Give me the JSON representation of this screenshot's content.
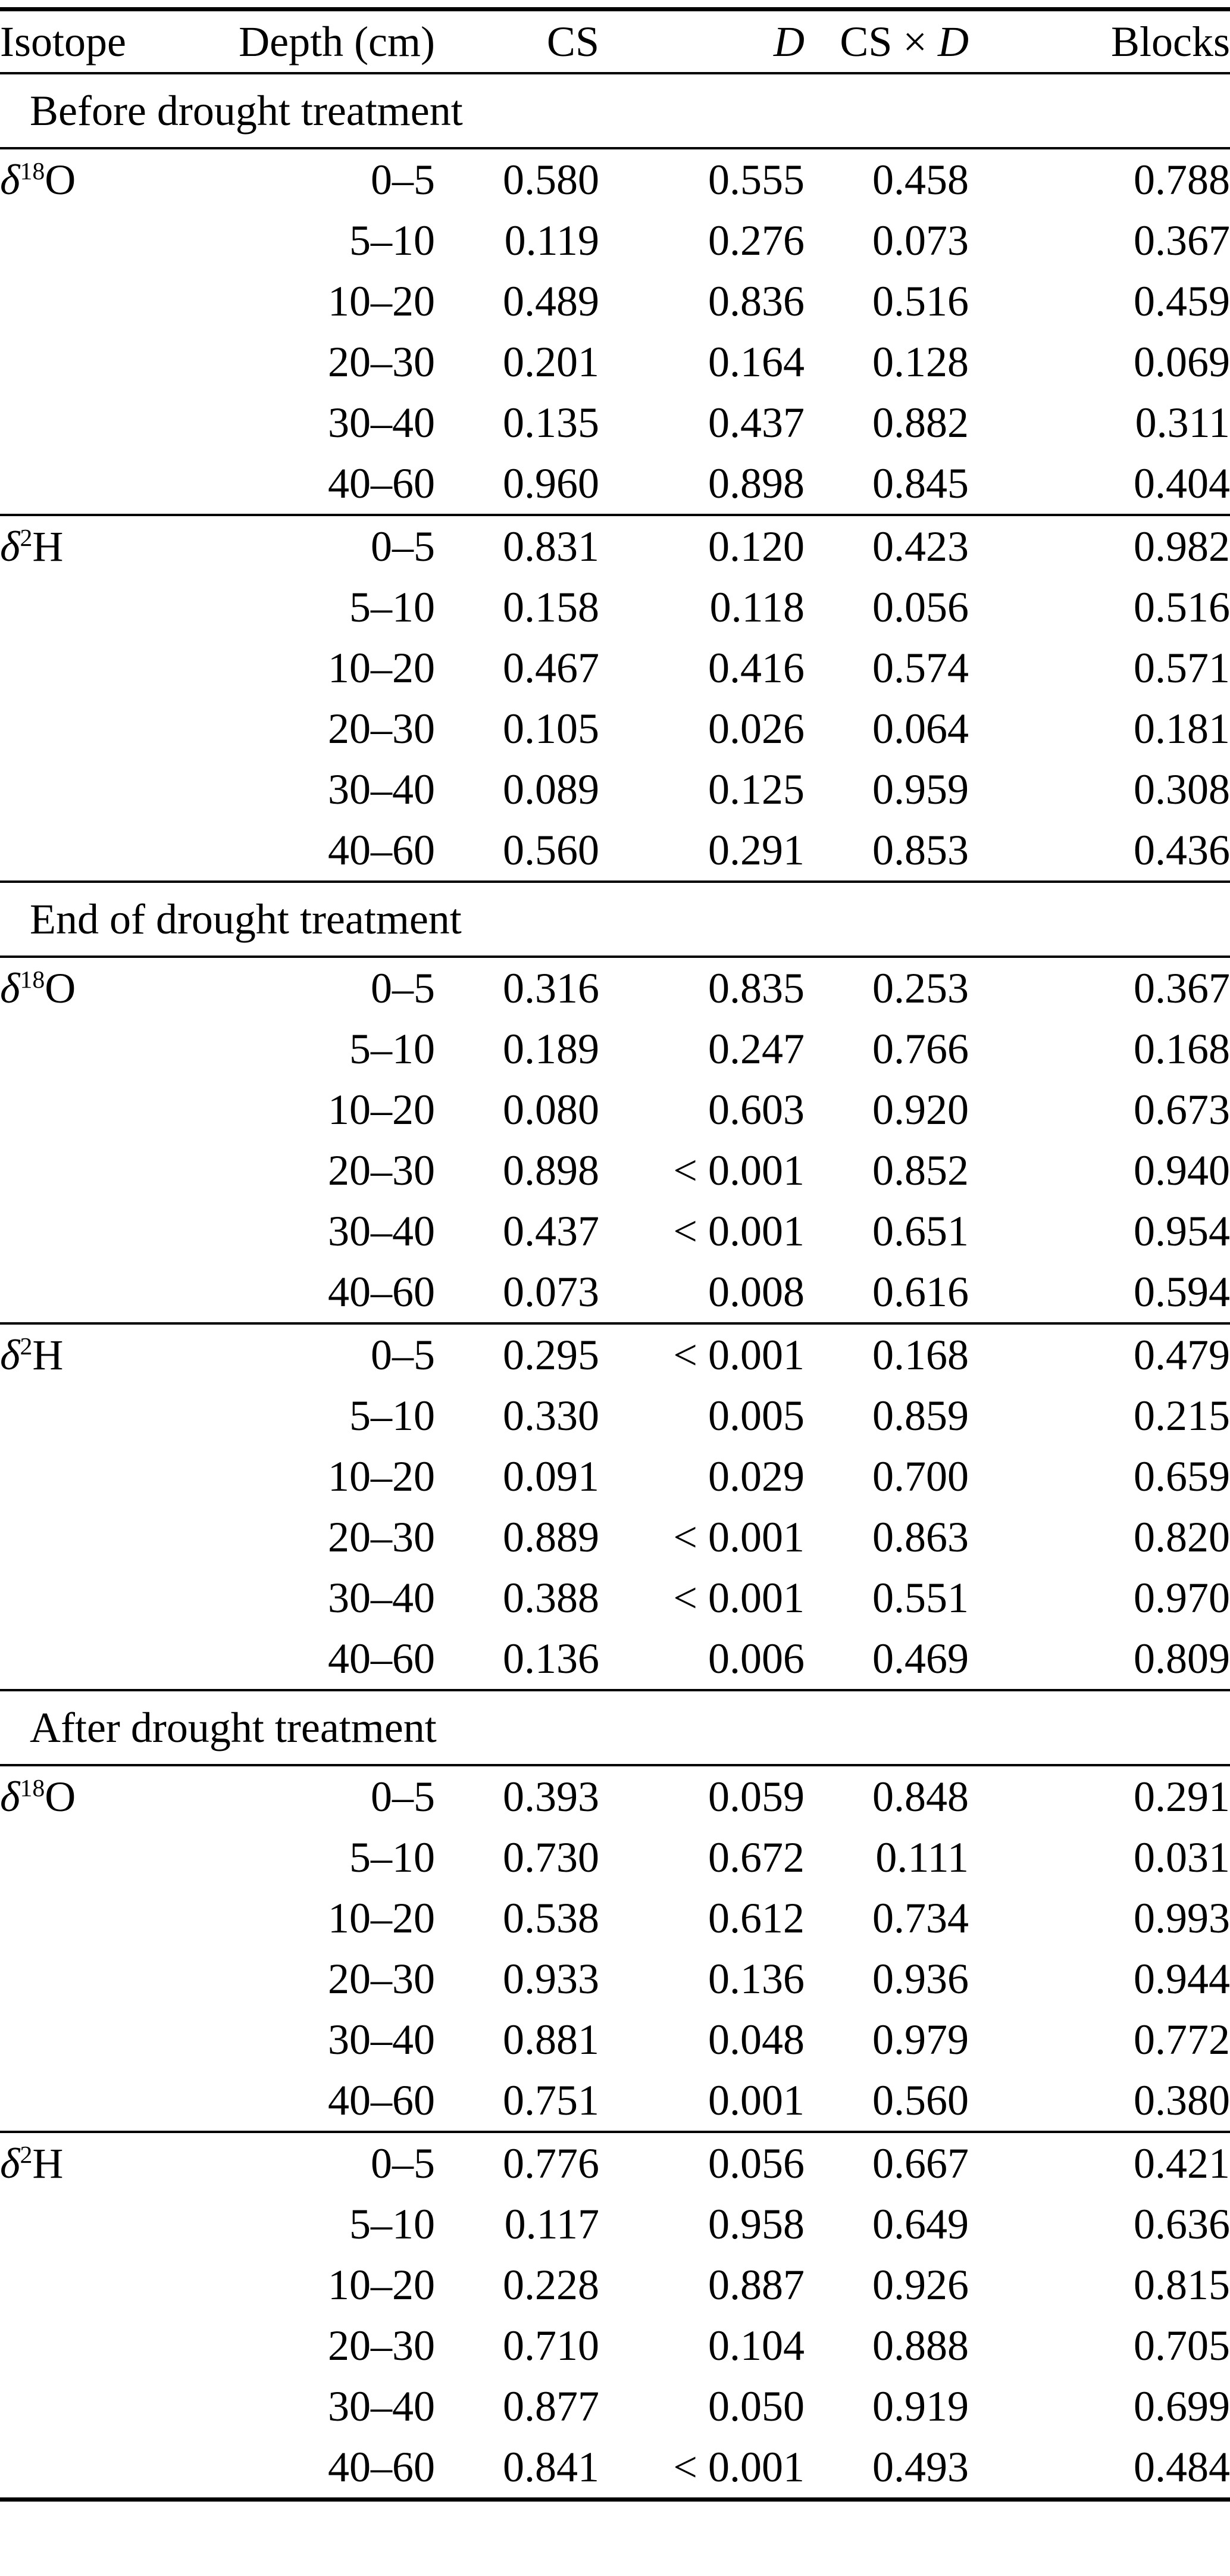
{
  "page": {
    "background_color": "#ffffff",
    "text_color": "#000000"
  },
  "table": {
    "columns": [
      {
        "key": "isotope",
        "segments": [
          {
            "text": "Isotope"
          }
        ]
      },
      {
        "key": "depth",
        "segments": [
          {
            "text": "Depth (cm)"
          }
        ]
      },
      {
        "key": "cs",
        "segments": [
          {
            "text": "CS"
          }
        ]
      },
      {
        "key": "d",
        "segments": [
          {
            "text": "D",
            "italic": true
          }
        ]
      },
      {
        "key": "csd",
        "segments": [
          {
            "text": "CS "
          },
          {
            "text": "×"
          },
          {
            "text": " "
          },
          {
            "text": "D",
            "italic": true
          }
        ]
      },
      {
        "key": "blocks",
        "segments": [
          {
            "text": "Blocks"
          }
        ]
      }
    ],
    "sections": [
      {
        "title": "Before drought treatment",
        "groups": [
          {
            "isotope": {
              "symbol": "δ",
              "superscript": "18",
              "element": "O"
            },
            "rows": [
              {
                "depth": "0–5",
                "cs": "0.580",
                "d": "0.555",
                "csd": "0.458",
                "blocks": "0.788"
              },
              {
                "depth": "5–10",
                "cs": "0.119",
                "d": "0.276",
                "csd": "0.073",
                "blocks": "0.367"
              },
              {
                "depth": "10–20",
                "cs": "0.489",
                "d": "0.836",
                "csd": "0.516",
                "blocks": "0.459"
              },
              {
                "depth": "20–30",
                "cs": "0.201",
                "d": "0.164",
                "csd": "0.128",
                "blocks": "0.069"
              },
              {
                "depth": "30–40",
                "cs": "0.135",
                "d": "0.437",
                "csd": "0.882",
                "blocks": "0.311"
              },
              {
                "depth": "40–60",
                "cs": "0.960",
                "d": "0.898",
                "csd": "0.845",
                "blocks": "0.404"
              }
            ]
          },
          {
            "isotope": {
              "symbol": "δ",
              "superscript": "2",
              "element": "H"
            },
            "rows": [
              {
                "depth": "0–5",
                "cs": "0.831",
                "d": "0.120",
                "csd": "0.423",
                "blocks": "0.982"
              },
              {
                "depth": "5–10",
                "cs": "0.158",
                "d": "0.118",
                "csd": "0.056",
                "blocks": "0.516"
              },
              {
                "depth": "10–20",
                "cs": "0.467",
                "d": "0.416",
                "csd": "0.574",
                "blocks": "0.571"
              },
              {
                "depth": "20–30",
                "cs": "0.105",
                "d": {
                  "v": "0.026",
                  "bold": true
                },
                "csd": "0.064",
                "blocks": "0.181"
              },
              {
                "depth": "30–40",
                "cs": "0.089",
                "d": "0.125",
                "csd": "0.959",
                "blocks": "0.308"
              },
              {
                "depth": "40–60",
                "cs": "0.560",
                "d": "0.291",
                "csd": "0.853",
                "blocks": "0.436"
              }
            ]
          }
        ]
      },
      {
        "title": "End of drought treatment",
        "groups": [
          {
            "isotope": {
              "symbol": "δ",
              "superscript": "18",
              "element": "O"
            },
            "rows": [
              {
                "depth": "0–5",
                "cs": "0.316",
                "d": "0.835",
                "csd": "0.253",
                "blocks": "0.367"
              },
              {
                "depth": "5–10",
                "cs": "0.189",
                "d": "0.247",
                "csd": "0.766",
                "blocks": "0.168"
              },
              {
                "depth": "10–20",
                "cs": "0.080",
                "d": "0.603",
                "csd": "0.920",
                "blocks": "0.673"
              },
              {
                "depth": "20–30",
                "cs": "0.898",
                "d": {
                  "v": "< 0.001",
                  "bold": true
                },
                "csd": "0.852",
                "blocks": "0.940"
              },
              {
                "depth": "30–40",
                "cs": "0.437",
                "d": {
                  "v": "< 0.001",
                  "bold": true
                },
                "csd": "0.651",
                "blocks": "0.954"
              },
              {
                "depth": "40–60",
                "cs": "0.073",
                "d": {
                  "v": "0.008",
                  "bold": true
                },
                "csd": "0.616",
                "blocks": "0.594"
              }
            ]
          },
          {
            "isotope": {
              "symbol": "δ",
              "superscript": "2",
              "element": "H"
            },
            "rows": [
              {
                "depth": "0–5",
                "cs": "0.295",
                "d": {
                  "v": "< 0.001",
                  "bold": true
                },
                "csd": "0.168",
                "blocks": "0.479"
              },
              {
                "depth": "5–10",
                "cs": "0.330",
                "d": {
                  "v": "0.005",
                  "bold": true
                },
                "csd": "0.859",
                "blocks": "0.215"
              },
              {
                "depth": "10–20",
                "cs": "0.091",
                "d": {
                  "v": "0.029",
                  "bold": true
                },
                "csd": "0.700",
                "blocks": "0.659"
              },
              {
                "depth": "20–30",
                "cs": "0.889",
                "d": {
                  "v": "< 0.001",
                  "bold": true
                },
                "csd": "0.863",
                "blocks": "0.820"
              },
              {
                "depth": "30–40",
                "cs": "0.388",
                "d": {
                  "v": "< 0.001",
                  "bold": true
                },
                "csd": "0.551",
                "blocks": "0.970"
              },
              {
                "depth": "40–60",
                "cs": "0.136",
                "d": {
                  "v": "0.006",
                  "bold": true
                },
                "csd": "0.469",
                "blocks": "0.809"
              }
            ]
          }
        ]
      },
      {
        "title": "After drought treatment",
        "groups": [
          {
            "isotope": {
              "symbol": "δ",
              "superscript": "18",
              "element": "O"
            },
            "rows": [
              {
                "depth": "0–5",
                "cs": "0.393",
                "d": "0.059",
                "csd": "0.848",
                "blocks": "0.291"
              },
              {
                "depth": "5–10",
                "cs": "0.730",
                "d": "0.672",
                "csd": "0.111",
                "blocks": {
                  "v": "0.031",
                  "bold": true
                }
              },
              {
                "depth": "10–20",
                "cs": "0.538",
                "d": "0.612",
                "csd": "0.734",
                "blocks": "0.993"
              },
              {
                "depth": "20–30",
                "cs": "0.933",
                "d": "0.136",
                "csd": "0.936",
                "blocks": "0.944"
              },
              {
                "depth": "30–40",
                "cs": "0.881",
                "d": {
                  "v": "0.048",
                  "bold": true
                },
                "csd": "0.979",
                "blocks": "0.772"
              },
              {
                "depth": "40–60",
                "cs": "0.751",
                "d": {
                  "v": "0.001",
                  "bold": true
                },
                "csd": "0.560",
                "blocks": "0.380"
              }
            ]
          },
          {
            "isotope": {
              "symbol": "δ",
              "superscript": "2",
              "element": "H"
            },
            "rows": [
              {
                "depth": "0–5",
                "cs": "0.776",
                "d": "0.056",
                "csd": "0.667",
                "blocks": "0.421"
              },
              {
                "depth": "5–10",
                "cs": "0.117",
                "d": "0.958",
                "csd": "0.649",
                "blocks": "0.636"
              },
              {
                "depth": "10–20",
                "cs": "0.228",
                "d": "0.887",
                "csd": "0.926",
                "blocks": "0.815"
              },
              {
                "depth": "20–30",
                "cs": "0.710",
                "d": "0.104",
                "csd": "0.888",
                "blocks": "0.705"
              },
              {
                "depth": "30–40",
                "cs": "0.877",
                "d": "0.050",
                "csd": "0.919",
                "blocks": "0.699"
              },
              {
                "depth": "40–60",
                "cs": "0.841",
                "d": {
                  "v": "< 0.001",
                  "bold": true
                },
                "csd": "0.493",
                "blocks": "0.484"
              }
            ]
          }
        ]
      }
    ]
  }
}
